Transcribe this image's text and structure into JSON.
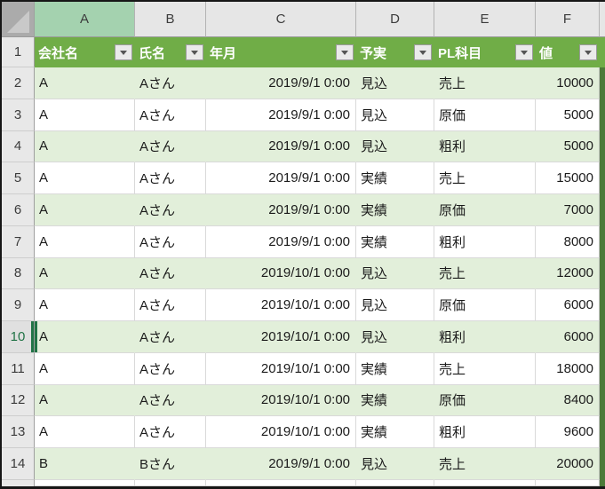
{
  "sheet": {
    "column_letters": [
      "A",
      "B",
      "C",
      "D",
      "E",
      "F"
    ],
    "active_cell": {
      "column": "A",
      "row": 10
    },
    "table": {
      "header_row_number": "1",
      "columns": [
        {
          "letter": "A",
          "label": "会社名",
          "align": "left"
        },
        {
          "letter": "B",
          "label": "氏名",
          "align": "left"
        },
        {
          "letter": "C",
          "label": "年月",
          "align": "right"
        },
        {
          "letter": "D",
          "label": "予実",
          "align": "left"
        },
        {
          "letter": "E",
          "label": "PL科目",
          "align": "left"
        },
        {
          "letter": "F",
          "label": "値",
          "align": "right"
        }
      ],
      "rows": [
        {
          "row": "2",
          "banded": true,
          "cells": [
            "A",
            "Aさん",
            "2019/9/1 0:00",
            "見込",
            "売上",
            "10000"
          ]
        },
        {
          "row": "3",
          "banded": false,
          "cells": [
            "A",
            "Aさん",
            "2019/9/1 0:00",
            "見込",
            "原価",
            "5000"
          ]
        },
        {
          "row": "4",
          "banded": true,
          "cells": [
            "A",
            "Aさん",
            "2019/9/1 0:00",
            "見込",
            "粗利",
            "5000"
          ]
        },
        {
          "row": "5",
          "banded": false,
          "cells": [
            "A",
            "Aさん",
            "2019/9/1 0:00",
            "実績",
            "売上",
            "15000"
          ]
        },
        {
          "row": "6",
          "banded": true,
          "cells": [
            "A",
            "Aさん",
            "2019/9/1 0:00",
            "実績",
            "原価",
            "7000"
          ]
        },
        {
          "row": "7",
          "banded": false,
          "cells": [
            "A",
            "Aさん",
            "2019/9/1 0:00",
            "実績",
            "粗利",
            "8000"
          ]
        },
        {
          "row": "8",
          "banded": true,
          "cells": [
            "A",
            "Aさん",
            "2019/10/1 0:00",
            "見込",
            "売上",
            "12000"
          ]
        },
        {
          "row": "9",
          "banded": false,
          "cells": [
            "A",
            "Aさん",
            "2019/10/1 0:00",
            "見込",
            "原価",
            "6000"
          ]
        },
        {
          "row": "10",
          "banded": true,
          "cells": [
            "A",
            "Aさん",
            "2019/10/1 0:00",
            "見込",
            "粗利",
            "6000"
          ]
        },
        {
          "row": "11",
          "banded": false,
          "cells": [
            "A",
            "Aさん",
            "2019/10/1 0:00",
            "実績",
            "売上",
            "18000"
          ]
        },
        {
          "row": "12",
          "banded": true,
          "cells": [
            "A",
            "Aさん",
            "2019/10/1 0:00",
            "実績",
            "原価",
            "8400"
          ]
        },
        {
          "row": "13",
          "banded": false,
          "cells": [
            "A",
            "Aさん",
            "2019/10/1 0:00",
            "実績",
            "粗利",
            "9600"
          ]
        },
        {
          "row": "14",
          "banded": true,
          "cells": [
            "B",
            "Bさん",
            "2019/9/1 0:00",
            "見込",
            "売上",
            "20000"
          ]
        }
      ]
    },
    "colors": {
      "table_header_green": "#70AD47",
      "banded_row_green": "#E2EFDA",
      "selected_column_header_tint": "#A4D2AF",
      "active_accent_green": "#217346",
      "header_band_gray": "#E6E6E6",
      "right_edge_green": "#4C7A38"
    }
  }
}
